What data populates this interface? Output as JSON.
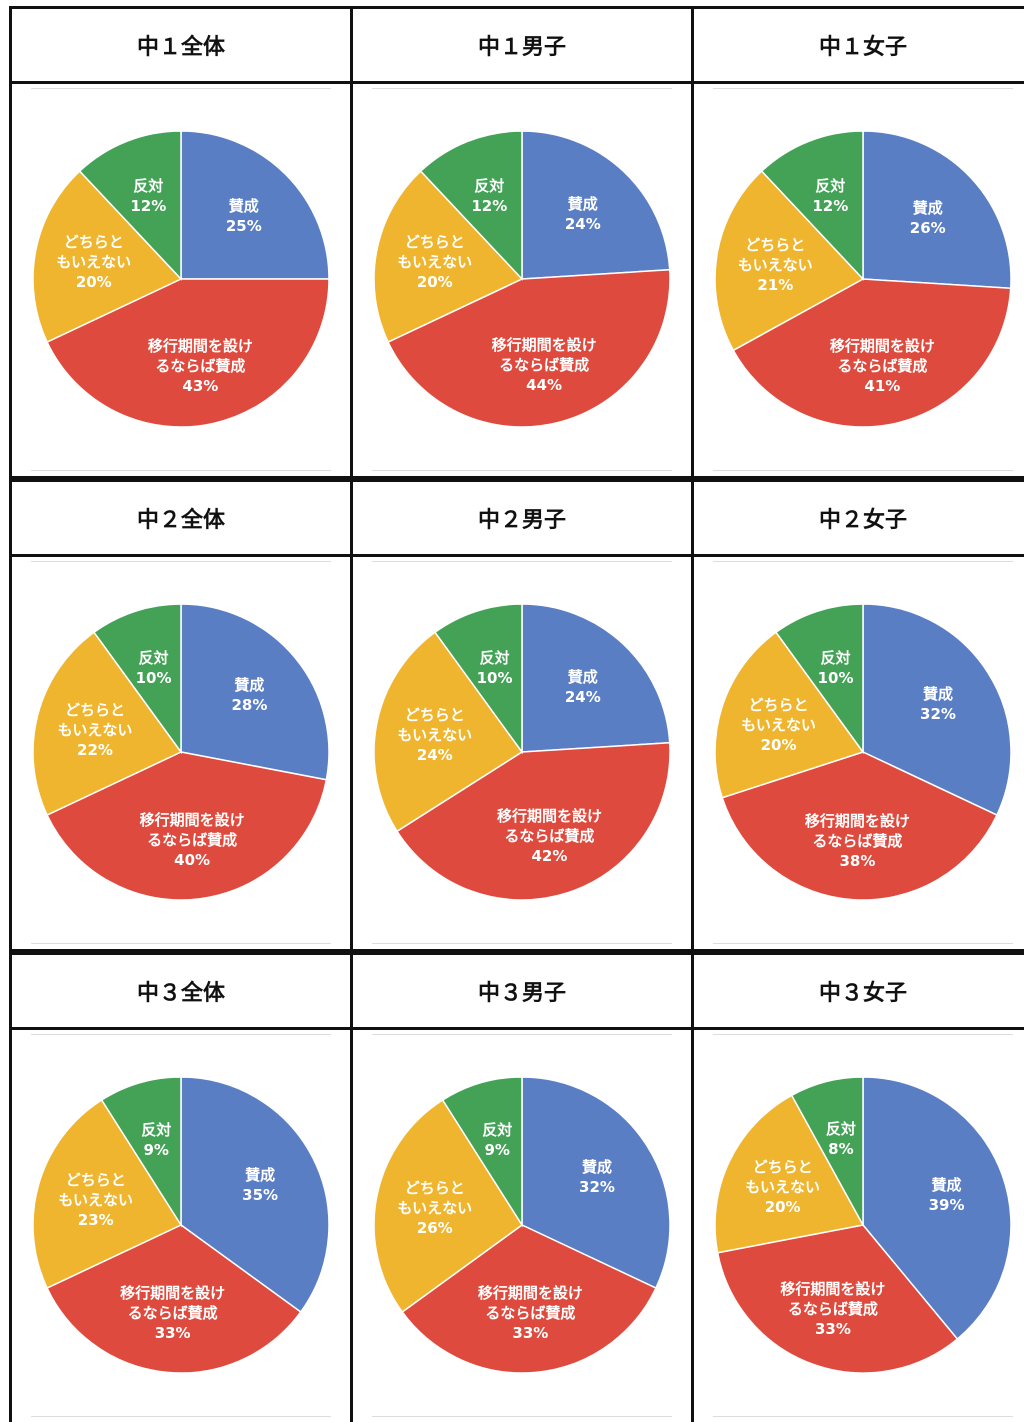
{
  "chart_data": [
    {
      "type": "pie",
      "title": "中１全体",
      "categories": [
        "賛成",
        "移行期間を設けるならば賛成",
        "どちらともいえない",
        "反対"
      ],
      "values": [
        25,
        43,
        20,
        12
      ],
      "value_labels": [
        "25%",
        "43%",
        "20%",
        "12%"
      ],
      "colors": [
        "#5a7ec4",
        "#de4a3d",
        "#efb52e",
        "#44a257"
      ]
    },
    {
      "type": "pie",
      "title": "中１男子",
      "categories": [
        "賛成",
        "移行期間を設けるならば賛成",
        "どちらともいえない",
        "反対"
      ],
      "values": [
        24,
        44,
        20,
        12
      ],
      "value_labels": [
        "24%",
        "44%",
        "20%",
        "12%"
      ],
      "colors": [
        "#5a7ec4",
        "#de4a3d",
        "#efb52e",
        "#44a257"
      ]
    },
    {
      "type": "pie",
      "title": "中１女子",
      "categories": [
        "賛成",
        "移行期間を設けるならば賛成",
        "どちらともいえない",
        "反対"
      ],
      "values": [
        26,
        41,
        21,
        12
      ],
      "value_labels": [
        "26%",
        "41%",
        "21%",
        "12%"
      ],
      "colors": [
        "#5a7ec4",
        "#de4a3d",
        "#efb52e",
        "#44a257"
      ]
    },
    {
      "type": "pie",
      "title": "中２全体",
      "categories": [
        "賛成",
        "移行期間を設けるならば賛成",
        "どちらともいえない",
        "反対"
      ],
      "values": [
        28,
        40,
        22,
        10
      ],
      "value_labels": [
        "28%",
        "40%",
        "22%",
        "10%"
      ],
      "colors": [
        "#5a7ec4",
        "#de4a3d",
        "#efb52e",
        "#44a257"
      ]
    },
    {
      "type": "pie",
      "title": "中２男子",
      "categories": [
        "賛成",
        "移行期間を設けるならば賛成",
        "どちらともいえない",
        "反対"
      ],
      "values": [
        24,
        42,
        24,
        10
      ],
      "value_labels": [
        "24%",
        "42%",
        "24%",
        "10%"
      ],
      "colors": [
        "#5a7ec4",
        "#de4a3d",
        "#efb52e",
        "#44a257"
      ]
    },
    {
      "type": "pie",
      "title": "中２女子",
      "categories": [
        "賛成",
        "移行期間を設けるならば賛成",
        "どちらともいえない",
        "反対"
      ],
      "values": [
        32,
        38,
        20,
        10
      ],
      "value_labels": [
        "32%",
        "38%",
        "20%",
        "10%"
      ],
      "colors": [
        "#5a7ec4",
        "#de4a3d",
        "#efb52e",
        "#44a257"
      ]
    },
    {
      "type": "pie",
      "title": "中３全体",
      "categories": [
        "賛成",
        "移行期間を設けるならば賛成",
        "どちらともいえない",
        "反対"
      ],
      "values": [
        35,
        33,
        23,
        9
      ],
      "value_labels": [
        "35%",
        "33%",
        "23%",
        "9%"
      ],
      "colors": [
        "#5a7ec4",
        "#de4a3d",
        "#efb52e",
        "#44a257"
      ]
    },
    {
      "type": "pie",
      "title": "中３男子",
      "categories": [
        "賛成",
        "移行期間を設けるならば賛成",
        "どちらともいえない",
        "反対"
      ],
      "values": [
        32,
        33,
        26,
        9
      ],
      "value_labels": [
        "32%",
        "33%",
        "26%",
        "9%"
      ],
      "colors": [
        "#5a7ec4",
        "#de4a3d",
        "#efb52e",
        "#44a257"
      ]
    },
    {
      "type": "pie",
      "title": "中３女子",
      "categories": [
        "賛成",
        "移行期間を設けるならば賛成",
        "どちらともいえない",
        "反対"
      ],
      "values": [
        39,
        33,
        20,
        8
      ],
      "value_labels": [
        "39%",
        "33%",
        "20%",
        "8%"
      ],
      "colors": [
        "#5a7ec4",
        "#de4a3d",
        "#efb52e",
        "#44a257"
      ]
    }
  ]
}
